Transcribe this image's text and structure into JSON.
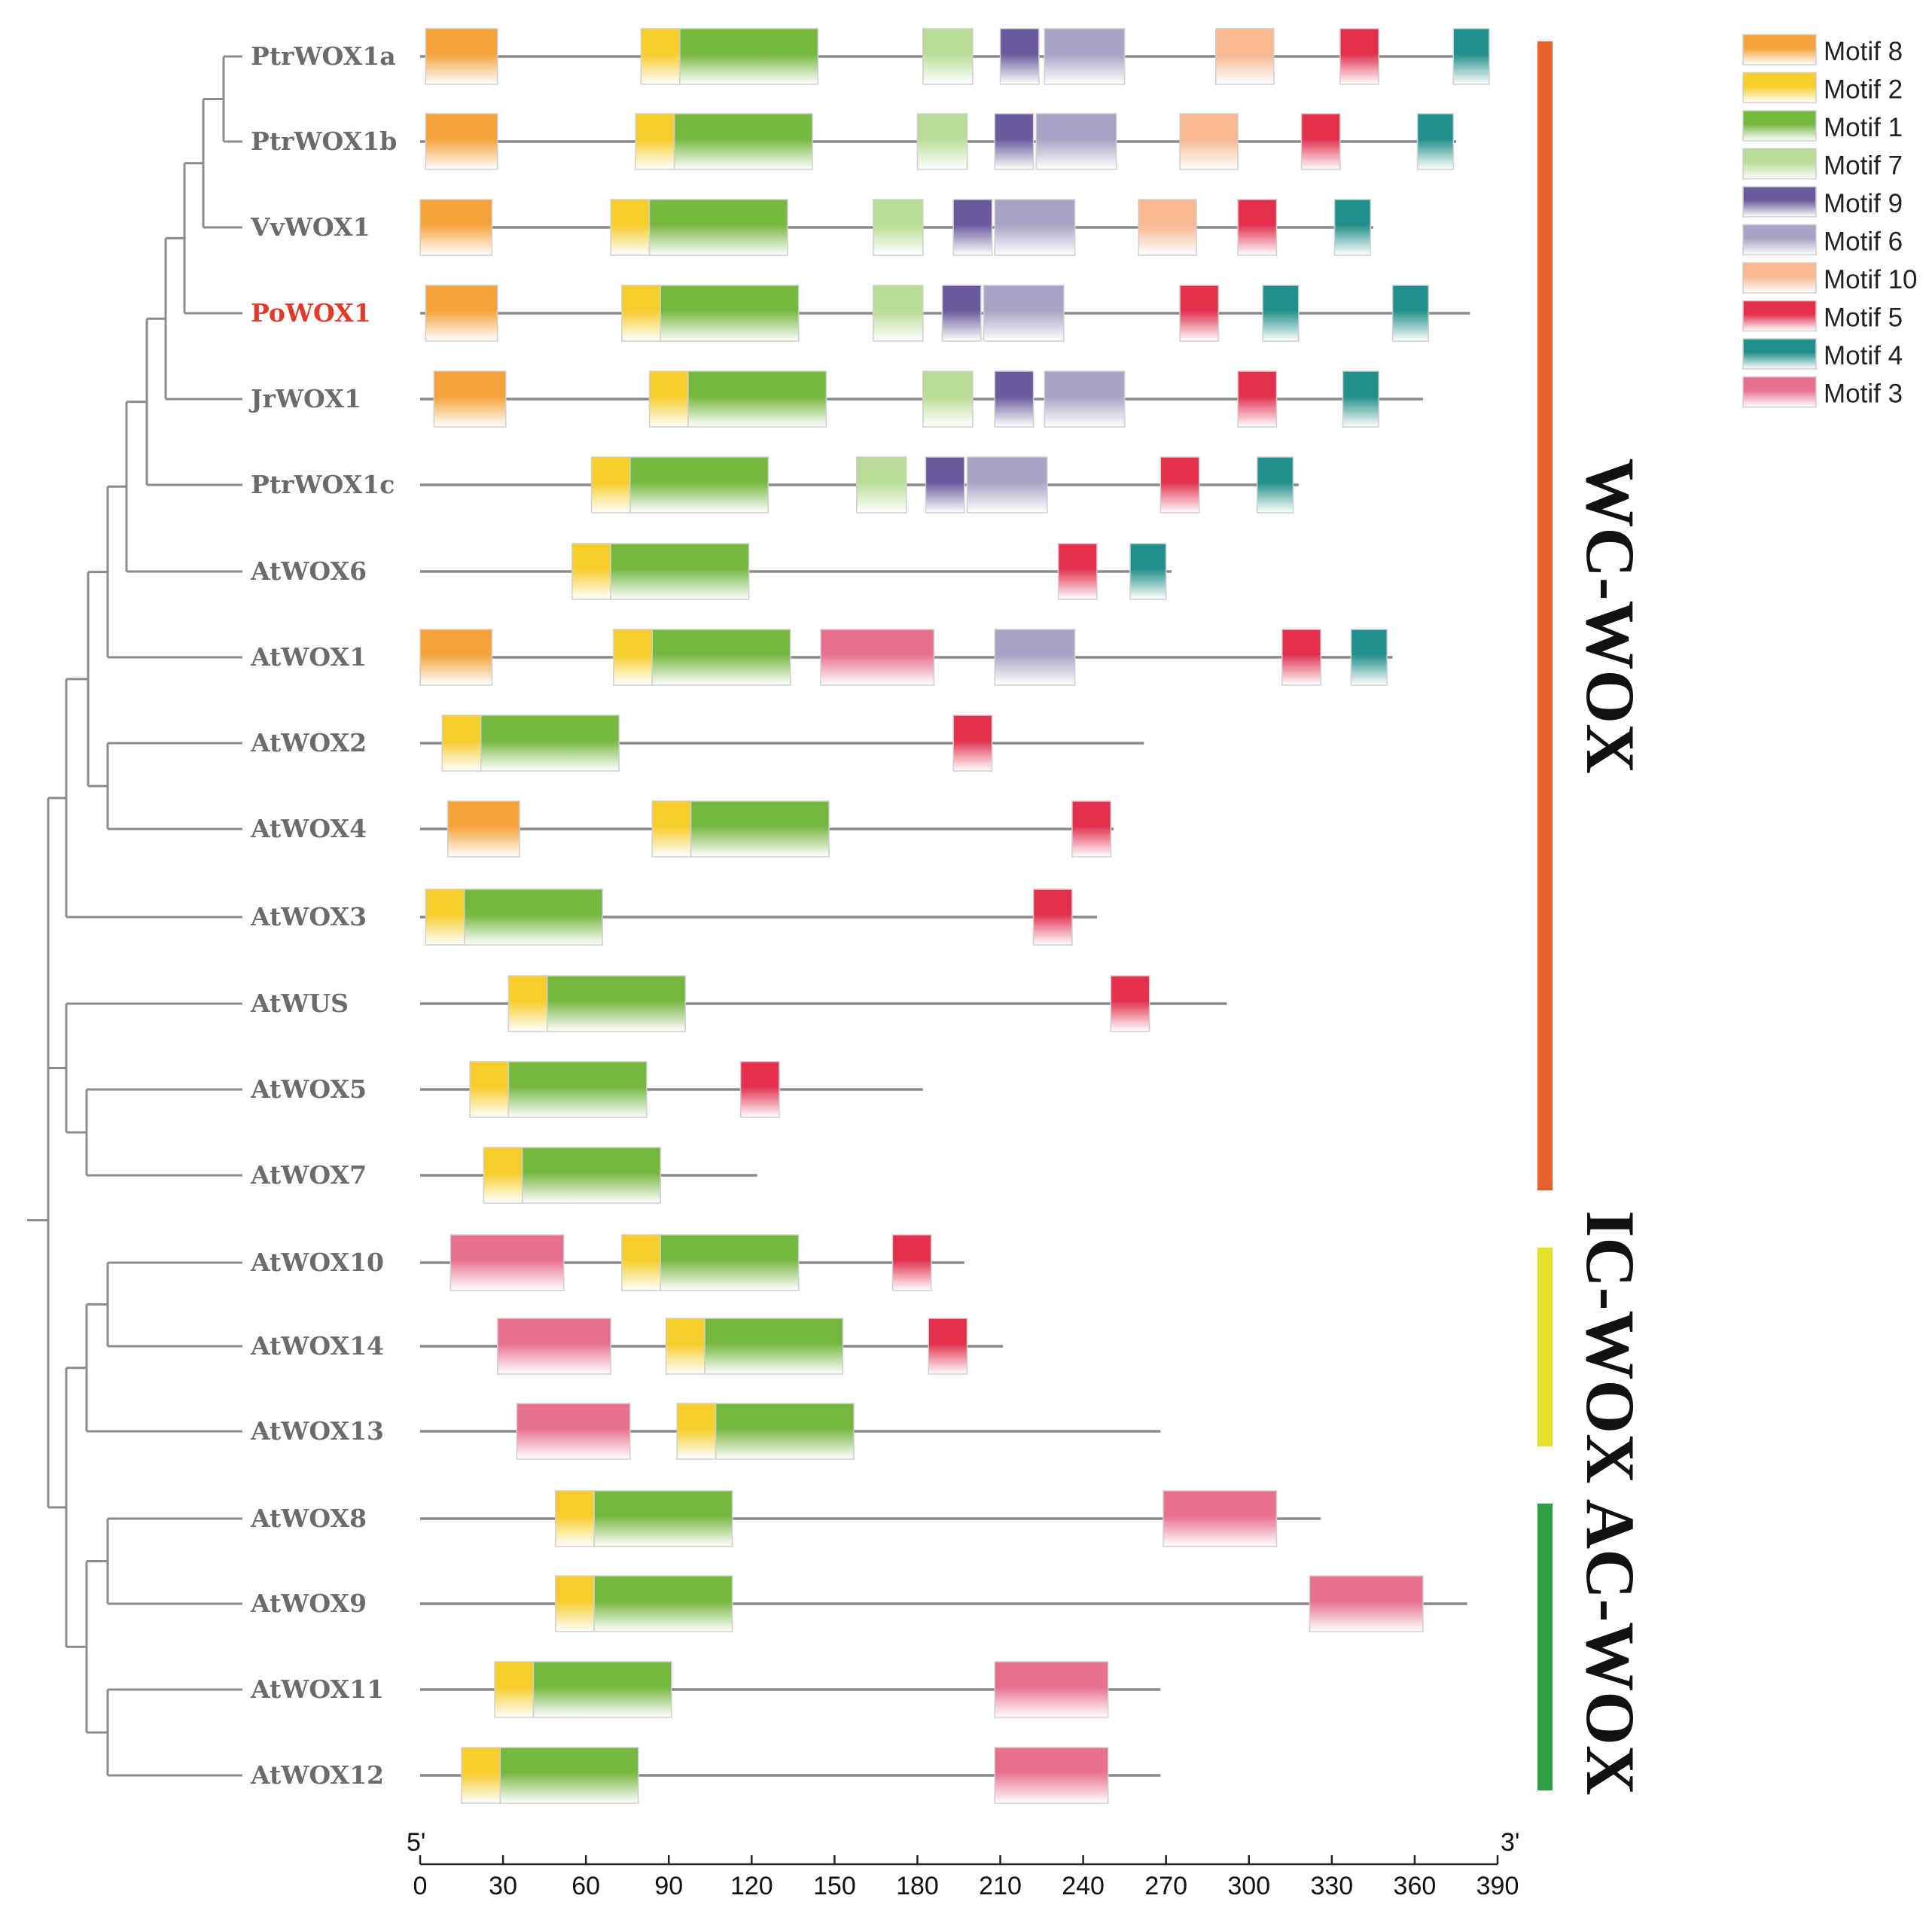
{
  "figure": {
    "axis": {
      "start_label": "5'",
      "end_label": "3'",
      "ticks": [
        0,
        30,
        60,
        90,
        120,
        150,
        180,
        210,
        240,
        270,
        300,
        330,
        360,
        390
      ],
      "min": 0,
      "max": 390
    },
    "legend": [
      {
        "motif": "Motif 8",
        "color": "#f5a339"
      },
      {
        "motif": "Motif 2",
        "color": "#f6cd2a"
      },
      {
        "motif": "Motif 1",
        "color": "#76b740"
      },
      {
        "motif": "Motif 7",
        "color": "#b9dd96"
      },
      {
        "motif": "Motif 9",
        "color": "#6a5a9c"
      },
      {
        "motif": "Motif 6",
        "color": "#a8a3c4"
      },
      {
        "motif": "Motif 10",
        "color": "#f7b892"
      },
      {
        "motif": "Motif 5",
        "color": "#e2304d"
      },
      {
        "motif": "Motif 4",
        "color": "#218f8a"
      },
      {
        "motif": "Motif 3",
        "color": "#e8708f"
      }
    ],
    "groups": [
      {
        "label": "WC-WOX",
        "color": "#e8602c",
        "first": 0,
        "last": 13
      },
      {
        "label": "IC-WOX",
        "color": "#e5df2a",
        "first": 14,
        "last": 16
      },
      {
        "label": "AC-WOX",
        "color": "#2ea043",
        "first": 17,
        "last": 20
      }
    ],
    "genes": [
      {
        "name": "PtrWOX1a",
        "highlight": false,
        "length": 387,
        "motifs": [
          [
            "Motif 8",
            2,
            28
          ],
          [
            "Motif 2",
            80,
            94
          ],
          [
            "Motif 1",
            94,
            144
          ],
          [
            "Motif 7",
            182,
            200
          ],
          [
            "Motif 9",
            210,
            224
          ],
          [
            "Motif 6",
            226,
            255
          ],
          [
            "Motif 10",
            288,
            309
          ],
          [
            "Motif 5",
            333,
            347
          ],
          [
            "Motif 4",
            374,
            387
          ]
        ]
      },
      {
        "name": "PtrWOX1b",
        "highlight": false,
        "length": 375,
        "motifs": [
          [
            "Motif 8",
            2,
            28
          ],
          [
            "Motif 2",
            78,
            92
          ],
          [
            "Motif 1",
            92,
            142
          ],
          [
            "Motif 7",
            180,
            198
          ],
          [
            "Motif 9",
            208,
            222
          ],
          [
            "Motif 6",
            223,
            252
          ],
          [
            "Motif 10",
            275,
            296
          ],
          [
            "Motif 5",
            319,
            333
          ],
          [
            "Motif 4",
            361,
            374
          ]
        ]
      },
      {
        "name": "VvWOX1",
        "highlight": false,
        "length": 345,
        "motifs": [
          [
            "Motif 8",
            0,
            26
          ],
          [
            "Motif 2",
            69,
            83
          ],
          [
            "Motif 1",
            83,
            133
          ],
          [
            "Motif 7",
            164,
            182
          ],
          [
            "Motif 9",
            193,
            207
          ],
          [
            "Motif 6",
            208,
            237
          ],
          [
            "Motif 10",
            260,
            281
          ],
          [
            "Motif 5",
            296,
            310
          ],
          [
            "Motif 4",
            331,
            344
          ]
        ]
      },
      {
        "name": "PoWOX1",
        "highlight": true,
        "length": 380,
        "motifs": [
          [
            "Motif 8",
            2,
            28
          ],
          [
            "Motif 2",
            73,
            87
          ],
          [
            "Motif 1",
            87,
            137
          ],
          [
            "Motif 7",
            164,
            182
          ],
          [
            "Motif 9",
            189,
            203
          ],
          [
            "Motif 6",
            204,
            233
          ],
          [
            "Motif 5",
            275,
            289
          ],
          [
            "Motif 4",
            305,
            318
          ],
          [
            "Motif 4",
            352,
            365
          ]
        ]
      },
      {
        "name": "JrWOX1",
        "highlight": false,
        "length": 363,
        "motifs": [
          [
            "Motif 8",
            5,
            31
          ],
          [
            "Motif 2",
            83,
            97
          ],
          [
            "Motif 1",
            97,
            147
          ],
          [
            "Motif 7",
            182,
            200
          ],
          [
            "Motif 9",
            208,
            222
          ],
          [
            "Motif 6",
            226,
            255
          ],
          [
            "Motif 5",
            296,
            310
          ],
          [
            "Motif 4",
            334,
            347
          ]
        ]
      },
      {
        "name": "PtrWOX1c",
        "highlight": false,
        "length": 318,
        "motifs": [
          [
            "Motif 2",
            62,
            76
          ],
          [
            "Motif 1",
            76,
            126
          ],
          [
            "Motif 7",
            158,
            176
          ],
          [
            "Motif 9",
            183,
            197
          ],
          [
            "Motif 6",
            198,
            227
          ],
          [
            "Motif 5",
            268,
            282
          ],
          [
            "Motif 4",
            303,
            316
          ]
        ]
      },
      {
        "name": "AtWOX6",
        "highlight": false,
        "length": 272,
        "motifs": [
          [
            "Motif 2",
            55,
            69
          ],
          [
            "Motif 1",
            69,
            119
          ],
          [
            "Motif 5",
            231,
            245
          ],
          [
            "Motif 4",
            257,
            270
          ]
        ]
      },
      {
        "name": "AtWOX1",
        "highlight": false,
        "length": 352,
        "motifs": [
          [
            "Motif 8",
            0,
            26
          ],
          [
            "Motif 2",
            70,
            84
          ],
          [
            "Motif 1",
            84,
            134
          ],
          [
            "Motif 3",
            145,
            186
          ],
          [
            "Motif 6",
            208,
            237
          ],
          [
            "Motif 5",
            312,
            326
          ],
          [
            "Motif 4",
            337,
            350
          ]
        ]
      },
      {
        "name": "AtWOX2",
        "highlight": false,
        "length": 262,
        "motifs": [
          [
            "Motif 2",
            8,
            22
          ],
          [
            "Motif 1",
            22,
            72
          ],
          [
            "Motif 5",
            193,
            207
          ]
        ]
      },
      {
        "name": "AtWOX4",
        "highlight": false,
        "length": 251,
        "motifs": [
          [
            "Motif 8",
            10,
            36
          ],
          [
            "Motif 2",
            84,
            98
          ],
          [
            "Motif 1",
            98,
            148
          ],
          [
            "Motif 5",
            236,
            250
          ]
        ]
      },
      {
        "name": "AtWOX3",
        "highlight": false,
        "length": 245,
        "motifs": [
          [
            "Motif 2",
            2,
            16
          ],
          [
            "Motif 1",
            16,
            66
          ],
          [
            "Motif 5",
            222,
            236
          ]
        ]
      },
      {
        "name": "AtWUS",
        "highlight": false,
        "length": 292,
        "motifs": [
          [
            "Motif 2",
            32,
            46
          ],
          [
            "Motif 1",
            46,
            96
          ],
          [
            "Motif 5",
            250,
            264
          ]
        ]
      },
      {
        "name": "AtWOX5",
        "highlight": false,
        "length": 182,
        "motifs": [
          [
            "Motif 2",
            18,
            32
          ],
          [
            "Motif 1",
            32,
            82
          ],
          [
            "Motif 5",
            116,
            130
          ]
        ]
      },
      {
        "name": "AtWOX7",
        "highlight": false,
        "length": 122,
        "motifs": [
          [
            "Motif 2",
            23,
            37
          ],
          [
            "Motif 1",
            37,
            87
          ]
        ]
      },
      {
        "name": "AtWOX10",
        "highlight": false,
        "length": 197,
        "motifs": [
          [
            "Motif 3",
            11,
            52
          ],
          [
            "Motif 2",
            73,
            87
          ],
          [
            "Motif 1",
            87,
            137
          ],
          [
            "Motif 5",
            171,
            185
          ]
        ]
      },
      {
        "name": "AtWOX14",
        "highlight": false,
        "length": 211,
        "motifs": [
          [
            "Motif 3",
            28,
            69
          ],
          [
            "Motif 2",
            89,
            103
          ],
          [
            "Motif 1",
            103,
            153
          ],
          [
            "Motif 5",
            184,
            198
          ]
        ]
      },
      {
        "name": "AtWOX13",
        "highlight": false,
        "length": 268,
        "motifs": [
          [
            "Motif 3",
            35,
            76
          ],
          [
            "Motif 2",
            93,
            107
          ],
          [
            "Motif 1",
            107,
            157
          ]
        ]
      },
      {
        "name": "AtWOX8",
        "highlight": false,
        "length": 326,
        "motifs": [
          [
            "Motif 2",
            49,
            63
          ],
          [
            "Motif 1",
            63,
            113
          ],
          [
            "Motif 3",
            269,
            310
          ]
        ]
      },
      {
        "name": "AtWOX9",
        "highlight": false,
        "length": 379,
        "motifs": [
          [
            "Motif 2",
            49,
            63
          ],
          [
            "Motif 1",
            63,
            113
          ],
          [
            "Motif 3",
            322,
            363
          ]
        ]
      },
      {
        "name": "AtWOX11",
        "highlight": false,
        "length": 268,
        "motifs": [
          [
            "Motif 2",
            27,
            41
          ],
          [
            "Motif 1",
            41,
            91
          ],
          [
            "Motif 3",
            208,
            249
          ]
        ]
      },
      {
        "name": "AtWOX12",
        "highlight": false,
        "length": 268,
        "motifs": [
          [
            "Motif 2",
            15,
            29
          ],
          [
            "Motif 1",
            29,
            79
          ],
          [
            "Motif 3",
            208,
            249
          ]
        ]
      }
    ]
  }
}
